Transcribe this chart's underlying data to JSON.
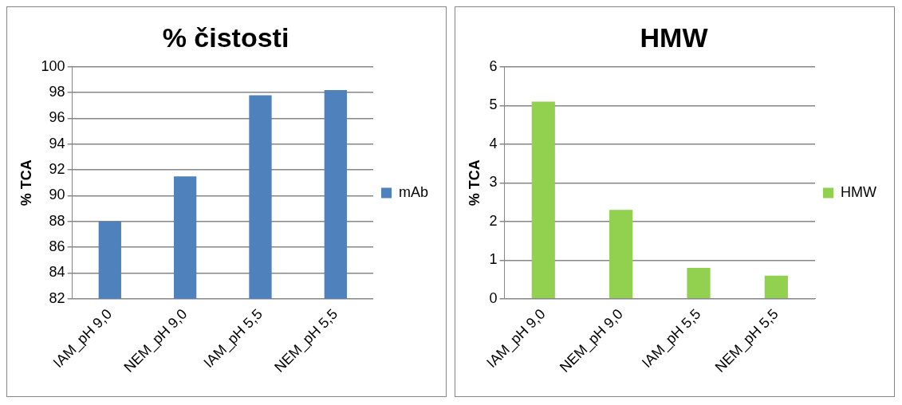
{
  "chart_data": [
    {
      "type": "bar",
      "title": "% čistosti",
      "ylabel": "% TCA",
      "categories": [
        "IAM_pH 9,0",
        "NEM_pH 9,0",
        "IAM_pH 5,5",
        "NEM_pH 5,5"
      ],
      "series": [
        {
          "name": "mAb",
          "color": "#4f81bd",
          "values": [
            88.0,
            91.5,
            97.8,
            98.2
          ]
        }
      ],
      "ylim": [
        82,
        100
      ],
      "yticks": [
        82,
        84,
        86,
        88,
        90,
        92,
        94,
        96,
        98,
        100
      ],
      "grid": "y",
      "legend": "right"
    },
    {
      "type": "bar",
      "title": "HMW",
      "ylabel": "% TCA",
      "categories": [
        "IAM_pH 9,0",
        "NEM_pH 9,0",
        "IAM_pH 5,5",
        "NEM_pH 5,5"
      ],
      "series": [
        {
          "name": "HMW",
          "color": "#92d050",
          "values": [
            5.1,
            2.3,
            0.8,
            0.6
          ]
        }
      ],
      "ylim": [
        0,
        6
      ],
      "yticks": [
        0,
        1,
        2,
        3,
        4,
        5,
        6
      ],
      "grid": "y",
      "legend": "right"
    }
  ]
}
